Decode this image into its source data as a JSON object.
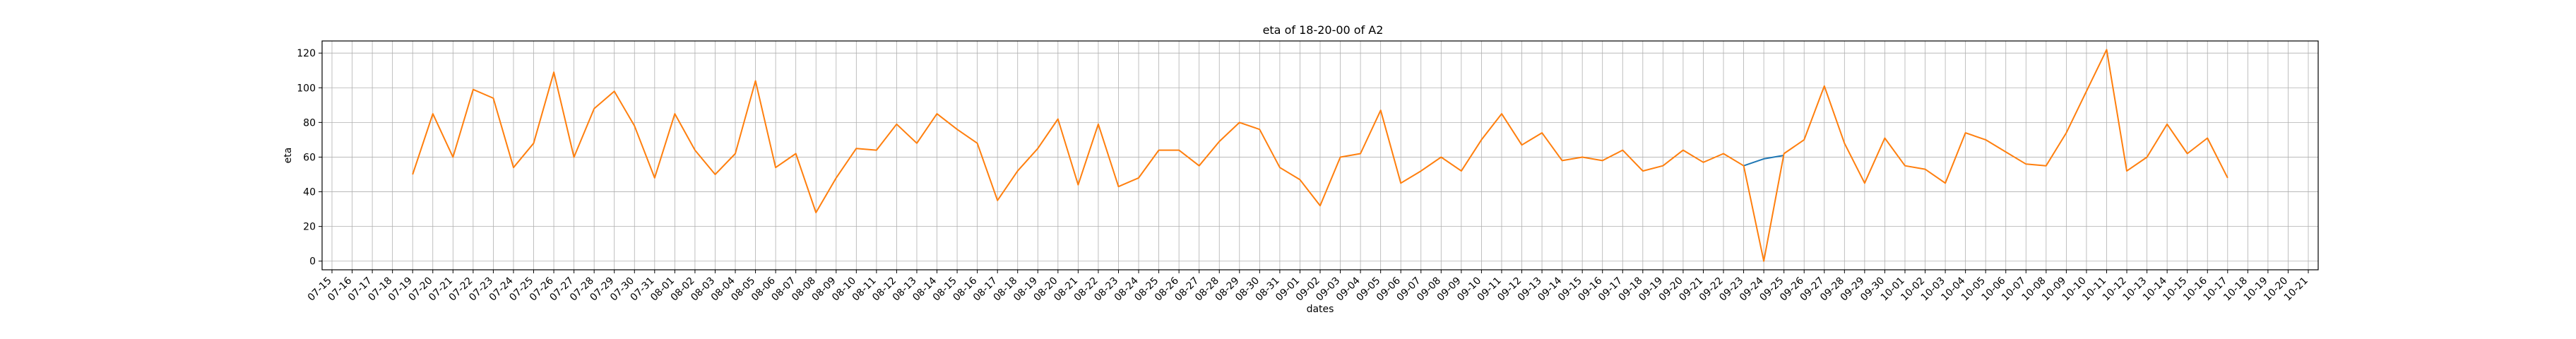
{
  "chart_data": {
    "type": "line",
    "title": "eta of 18-20-00 of A2",
    "xlabel": "dates",
    "ylabel": "eta",
    "grid": true,
    "ylim": [
      -5,
      127
    ],
    "yticks": [
      0,
      20,
      40,
      60,
      80,
      100,
      120
    ],
    "xticks": [
      "07-15",
      "07-16",
      "07-17",
      "07-18",
      "07-19",
      "07-20",
      "07-21",
      "07-22",
      "07-23",
      "07-24",
      "07-25",
      "07-26",
      "07-27",
      "07-28",
      "07-29",
      "07-30",
      "07-31",
      "08-01",
      "08-02",
      "08-03",
      "08-04",
      "08-05",
      "08-06",
      "08-07",
      "08-08",
      "08-09",
      "08-10",
      "08-11",
      "08-12",
      "08-13",
      "08-14",
      "08-15",
      "08-16",
      "08-17",
      "08-18",
      "08-19",
      "08-20",
      "08-21",
      "08-22",
      "08-23",
      "08-24",
      "08-25",
      "08-26",
      "08-27",
      "08-28",
      "08-29",
      "08-30",
      "08-31",
      "09-01",
      "09-02",
      "09-03",
      "09-04",
      "09-05",
      "09-06",
      "09-07",
      "09-08",
      "09-09",
      "09-10",
      "09-11",
      "09-12",
      "09-13",
      "09-14",
      "09-15",
      "09-16",
      "09-17",
      "09-18",
      "09-19",
      "09-20",
      "09-21",
      "09-22",
      "09-23",
      "09-24",
      "09-25",
      "09-26",
      "09-27",
      "09-28",
      "09-29",
      "09-30",
      "10-01",
      "10-02",
      "10-03",
      "10-04",
      "10-05",
      "10-06",
      "10-07",
      "10-08",
      "10-09",
      "10-10",
      "10-11",
      "10-12",
      "10-13",
      "10-14",
      "10-15",
      "10-16",
      "10-17",
      "10-18",
      "10-19",
      "10-20",
      "10-21"
    ],
    "series": [
      {
        "color": "#1f77b4",
        "start": "09-23",
        "values": [
          55,
          59,
          61
        ]
      },
      {
        "color": "#ff7f0e",
        "start": "07-19",
        "values": [
          50,
          85,
          60,
          99,
          94,
          54,
          68,
          109,
          60,
          88,
          98,
          78,
          48,
          85,
          64,
          50,
          62,
          104,
          54,
          62,
          28,
          48,
          65,
          64,
          79,
          68,
          85,
          76,
          68,
          35,
          52,
          65,
          82,
          44,
          79,
          43,
          48,
          64,
          64,
          55,
          69,
          80,
          76,
          54,
          47,
          32,
          60,
          62,
          87,
          45,
          52,
          60,
          52,
          70,
          85,
          67,
          74,
          58,
          60,
          58,
          64,
          52,
          55,
          64,
          57,
          62,
          55,
          0,
          62,
          70,
          101,
          68,
          45,
          71,
          55,
          53,
          45,
          74,
          70,
          63,
          56,
          55,
          74,
          98,
          122,
          52,
          60,
          79,
          62,
          71,
          48
        ]
      }
    ]
  }
}
